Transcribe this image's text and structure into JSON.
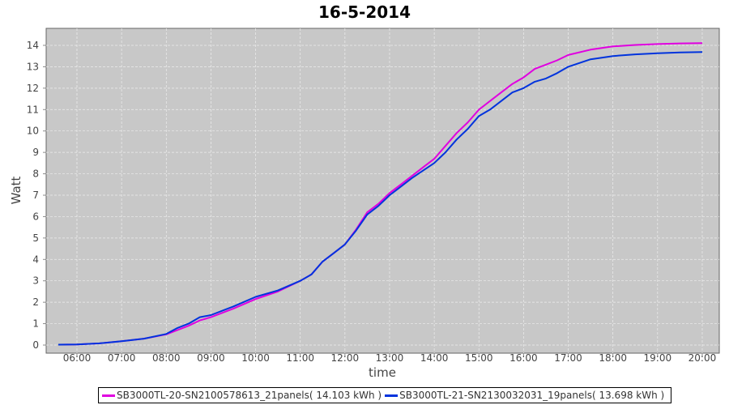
{
  "chart_data": {
    "type": "line",
    "title": "16-5-2014",
    "xlabel": "time",
    "ylabel": "Watt",
    "ylim": [
      0,
      14.8
    ],
    "xlim": [
      "05:20",
      "20:25"
    ],
    "yticks": [
      "0",
      "1",
      "2",
      "3",
      "4",
      "5",
      "6",
      "7",
      "8",
      "9",
      "10",
      "11",
      "12",
      "13",
      "14"
    ],
    "xticks": [
      "06:00",
      "07:00",
      "08:00",
      "09:00",
      "10:00",
      "11:00",
      "12:00",
      "13:00",
      "14:00",
      "15:00",
      "16:00",
      "17:00",
      "18:00",
      "19:00",
      "20:00"
    ],
    "grid": true,
    "legend_position": "bottom",
    "background": "#c8c8c8",
    "x": [
      "05:35",
      "06:00",
      "06:30",
      "07:00",
      "07:30",
      "08:00",
      "08:15",
      "08:30",
      "08:45",
      "09:00",
      "09:30",
      "10:00",
      "10:30",
      "11:00",
      "11:15",
      "11:30",
      "11:45",
      "12:00",
      "12:15",
      "12:30",
      "12:45",
      "13:00",
      "13:15",
      "13:30",
      "13:45",
      "14:00",
      "14:15",
      "14:30",
      "14:45",
      "15:00",
      "15:15",
      "15:30",
      "15:45",
      "16:00",
      "16:15",
      "16:30",
      "16:45",
      "17:00",
      "17:30",
      "18:00",
      "18:30",
      "19:00",
      "19:30",
      "20:00"
    ],
    "series": [
      {
        "name": "SB3000TL-20-SN2100578613_21panels( 14.103 kWh )",
        "color": "#e000e0",
        "values": [
          0.02,
          0.03,
          0.08,
          0.18,
          0.3,
          0.5,
          0.7,
          0.9,
          1.15,
          1.3,
          1.7,
          2.15,
          2.5,
          3.0,
          3.3,
          3.9,
          4.3,
          4.7,
          5.4,
          6.2,
          6.6,
          7.1,
          7.5,
          7.9,
          8.3,
          8.7,
          9.3,
          9.9,
          10.4,
          11.0,
          11.4,
          11.8,
          12.2,
          12.5,
          12.9,
          13.1,
          13.3,
          13.55,
          13.8,
          13.95,
          14.02,
          14.06,
          14.09,
          14.1
        ]
      },
      {
        "name": "SB3000TL-21-SN2130032031_19panels( 13.698 kWh )",
        "color": "#0033dd",
        "values": [
          0.02,
          0.03,
          0.08,
          0.18,
          0.3,
          0.52,
          0.8,
          1.0,
          1.3,
          1.4,
          1.8,
          2.25,
          2.55,
          3.0,
          3.3,
          3.9,
          4.3,
          4.7,
          5.35,
          6.1,
          6.5,
          7.0,
          7.4,
          7.8,
          8.15,
          8.5,
          9.0,
          9.6,
          10.1,
          10.7,
          11.0,
          11.4,
          11.8,
          12.0,
          12.3,
          12.45,
          12.7,
          13.0,
          13.35,
          13.5,
          13.58,
          13.63,
          13.67,
          13.69
        ]
      }
    ]
  }
}
